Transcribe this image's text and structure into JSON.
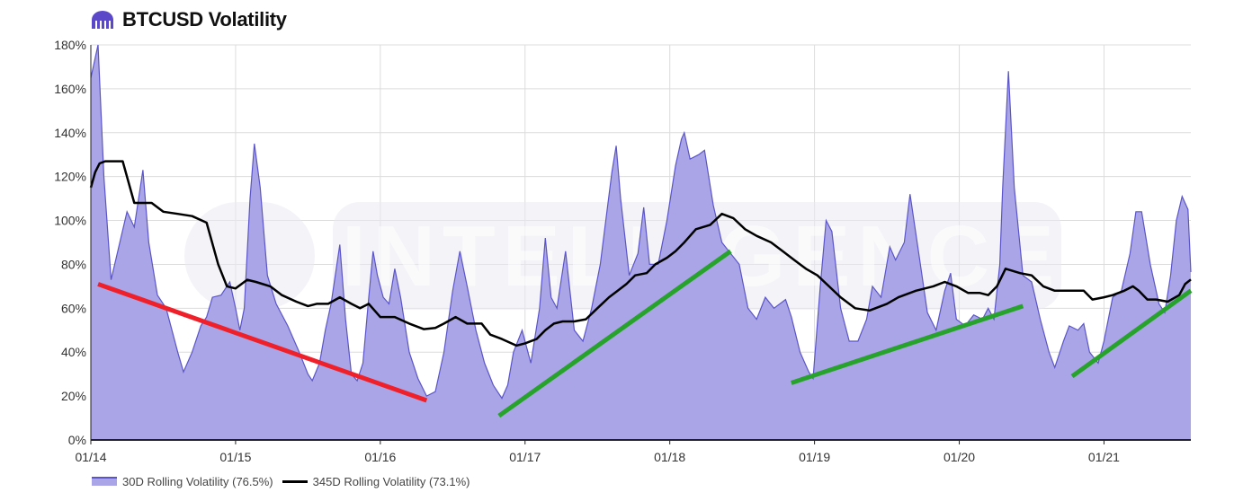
{
  "header": {
    "title": "BTCUSD Volatility",
    "logo_icon": "kraken-logo-icon"
  },
  "colors": {
    "area_fill": "#a9a5e6",
    "area_stroke": "#5b55c8",
    "line": "#000000",
    "trend_down": "#f0202a",
    "trend_up": "#27a32c",
    "grid": "#dcdcdc",
    "watermark": "#e8e8ef"
  },
  "watermark": {
    "text": "INTELLIGENCE"
  },
  "legend": {
    "items": [
      {
        "label": "30D Rolling Volatility (76.5%)"
      },
      {
        "label": "345D Rolling Volatility (73.1%)"
      }
    ]
  },
  "chart_data": {
    "type": "area",
    "xlabel": "",
    "ylabel": "",
    "x_unit": "year",
    "xlim": [
      2014.0,
      2021.6
    ],
    "ylim": [
      0,
      180
    ],
    "yticks": [
      0,
      20,
      40,
      60,
      80,
      100,
      120,
      140,
      160,
      180
    ],
    "ytick_labels": [
      "0%",
      "20%",
      "40%",
      "60%",
      "80%",
      "100%",
      "120%",
      "140%",
      "160%",
      "180%"
    ],
    "xticks": [
      2014,
      2015,
      2016,
      2017,
      2018,
      2019,
      2020,
      2021
    ],
    "xtick_labels": [
      "01/14",
      "01/15",
      "01/16",
      "01/17",
      "01/18",
      "01/19",
      "01/20",
      "01/21"
    ],
    "grid": true,
    "legend_position": "bottom-left",
    "series": [
      {
        "name": "30D Rolling Volatility (76.5%)",
        "type": "area",
        "points": [
          [
            2014.0,
            165
          ],
          [
            2014.05,
            180
          ],
          [
            2014.09,
            120
          ],
          [
            2014.14,
            73
          ],
          [
            2014.2,
            90
          ],
          [
            2014.25,
            104
          ],
          [
            2014.3,
            97
          ],
          [
            2014.36,
            123
          ],
          [
            2014.4,
            90
          ],
          [
            2014.46,
            66
          ],
          [
            2014.52,
            60
          ],
          [
            2014.6,
            40
          ],
          [
            2014.64,
            31
          ],
          [
            2014.7,
            40
          ],
          [
            2014.76,
            52
          ],
          [
            2014.8,
            56
          ],
          [
            2014.84,
            65
          ],
          [
            2014.9,
            66
          ],
          [
            2014.96,
            72
          ],
          [
            2015.0,
            60
          ],
          [
            2015.03,
            50
          ],
          [
            2015.06,
            60
          ],
          [
            2015.1,
            110
          ],
          [
            2015.13,
            135
          ],
          [
            2015.17,
            115
          ],
          [
            2015.22,
            75
          ],
          [
            2015.28,
            62
          ],
          [
            2015.36,
            52
          ],
          [
            2015.44,
            40
          ],
          [
            2015.5,
            30
          ],
          [
            2015.53,
            27
          ],
          [
            2015.58,
            35
          ],
          [
            2015.62,
            50
          ],
          [
            2015.66,
            62
          ],
          [
            2015.7,
            80
          ],
          [
            2015.72,
            89
          ],
          [
            2015.76,
            55
          ],
          [
            2015.8,
            30
          ],
          [
            2015.84,
            27
          ],
          [
            2015.88,
            35
          ],
          [
            2015.92,
            65
          ],
          [
            2015.95,
            86
          ],
          [
            2015.98,
            75
          ],
          [
            2016.02,
            65
          ],
          [
            2016.06,
            62
          ],
          [
            2016.1,
            78
          ],
          [
            2016.14,
            65
          ],
          [
            2016.2,
            40
          ],
          [
            2016.26,
            28
          ],
          [
            2016.32,
            20
          ],
          [
            2016.38,
            22
          ],
          [
            2016.44,
            40
          ],
          [
            2016.5,
            68
          ],
          [
            2016.55,
            86
          ],
          [
            2016.6,
            70
          ],
          [
            2016.66,
            50
          ],
          [
            2016.72,
            35
          ],
          [
            2016.78,
            25
          ],
          [
            2016.84,
            19
          ],
          [
            2016.88,
            25
          ],
          [
            2016.92,
            40
          ],
          [
            2016.98,
            50
          ],
          [
            2017.04,
            35
          ],
          [
            2017.1,
            60
          ],
          [
            2017.14,
            92
          ],
          [
            2017.18,
            65
          ],
          [
            2017.22,
            60
          ],
          [
            2017.28,
            86
          ],
          [
            2017.34,
            50
          ],
          [
            2017.4,
            45
          ],
          [
            2017.46,
            60
          ],
          [
            2017.52,
            80
          ],
          [
            2017.6,
            122
          ],
          [
            2017.63,
            134
          ],
          [
            2017.66,
            110
          ],
          [
            2017.72,
            75
          ],
          [
            2017.78,
            85
          ],
          [
            2017.82,
            106
          ],
          [
            2017.86,
            80
          ],
          [
            2017.92,
            80
          ],
          [
            2017.98,
            100
          ],
          [
            2018.04,
            125
          ],
          [
            2018.08,
            137
          ],
          [
            2018.1,
            140
          ],
          [
            2018.14,
            128
          ],
          [
            2018.2,
            130
          ],
          [
            2018.24,
            132
          ],
          [
            2018.3,
            107
          ],
          [
            2018.36,
            90
          ],
          [
            2018.42,
            85
          ],
          [
            2018.48,
            80
          ],
          [
            2018.54,
            60
          ],
          [
            2018.6,
            55
          ],
          [
            2018.66,
            65
          ],
          [
            2018.72,
            60
          ],
          [
            2018.8,
            64
          ],
          [
            2018.84,
            56
          ],
          [
            2018.9,
            40
          ],
          [
            2018.96,
            31
          ],
          [
            2018.99,
            28
          ],
          [
            2019.04,
            70
          ],
          [
            2019.08,
            100
          ],
          [
            2019.12,
            95
          ],
          [
            2019.18,
            60
          ],
          [
            2019.24,
            45
          ],
          [
            2019.3,
            45
          ],
          [
            2019.36,
            55
          ],
          [
            2019.4,
            70
          ],
          [
            2019.46,
            65
          ],
          [
            2019.52,
            88
          ],
          [
            2019.56,
            82
          ],
          [
            2019.62,
            90
          ],
          [
            2019.66,
            112
          ],
          [
            2019.72,
            85
          ],
          [
            2019.78,
            58
          ],
          [
            2019.84,
            50
          ],
          [
            2019.9,
            68
          ],
          [
            2019.94,
            76
          ],
          [
            2019.98,
            55
          ],
          [
            2020.04,
            52
          ],
          [
            2020.1,
            57
          ],
          [
            2020.16,
            55
          ],
          [
            2020.2,
            60
          ],
          [
            2020.24,
            55
          ],
          [
            2020.28,
            80
          ],
          [
            2020.3,
            115
          ],
          [
            2020.34,
            168
          ],
          [
            2020.38,
            115
          ],
          [
            2020.44,
            75
          ],
          [
            2020.5,
            72
          ],
          [
            2020.56,
            55
          ],
          [
            2020.62,
            40
          ],
          [
            2020.66,
            33
          ],
          [
            2020.72,
            45
          ],
          [
            2020.76,
            52
          ],
          [
            2020.82,
            50
          ],
          [
            2020.86,
            53
          ],
          [
            2020.9,
            40
          ],
          [
            2020.96,
            35
          ],
          [
            2021.0,
            45
          ],
          [
            2021.06,
            65
          ],
          [
            2021.12,
            68
          ],
          [
            2021.18,
            85
          ],
          [
            2021.22,
            104
          ],
          [
            2021.26,
            104
          ],
          [
            2021.32,
            80
          ],
          [
            2021.38,
            62
          ],
          [
            2021.42,
            58
          ],
          [
            2021.46,
            75
          ],
          [
            2021.5,
            100
          ],
          [
            2021.54,
            111
          ],
          [
            2021.58,
            105
          ],
          [
            2021.6,
            76.5
          ]
        ]
      },
      {
        "name": "345D Rolling Volatility (73.1%)",
        "type": "line",
        "points": [
          [
            2014.0,
            115
          ],
          [
            2014.03,
            122
          ],
          [
            2014.06,
            126
          ],
          [
            2014.1,
            127
          ],
          [
            2014.22,
            127
          ],
          [
            2014.3,
            108
          ],
          [
            2014.42,
            108
          ],
          [
            2014.5,
            104
          ],
          [
            2014.6,
            103
          ],
          [
            2014.7,
            102
          ],
          [
            2014.8,
            99
          ],
          [
            2014.88,
            80
          ],
          [
            2014.94,
            70
          ],
          [
            2015.0,
            69
          ],
          [
            2015.08,
            73
          ],
          [
            2015.14,
            72
          ],
          [
            2015.24,
            70
          ],
          [
            2015.32,
            66
          ],
          [
            2015.42,
            63
          ],
          [
            2015.5,
            61
          ],
          [
            2015.56,
            62
          ],
          [
            2015.64,
            62
          ],
          [
            2015.72,
            65
          ],
          [
            2015.8,
            62
          ],
          [
            2015.86,
            60
          ],
          [
            2015.92,
            62
          ],
          [
            2016.0,
            56
          ],
          [
            2016.1,
            56
          ],
          [
            2016.2,
            53
          ],
          [
            2016.3,
            50.5
          ],
          [
            2016.38,
            51
          ],
          [
            2016.44,
            53
          ],
          [
            2016.52,
            56
          ],
          [
            2016.6,
            53
          ],
          [
            2016.7,
            53
          ],
          [
            2016.76,
            48
          ],
          [
            2016.84,
            46
          ],
          [
            2016.94,
            43
          ],
          [
            2017.0,
            44
          ],
          [
            2017.08,
            46
          ],
          [
            2017.14,
            50
          ],
          [
            2017.2,
            53
          ],
          [
            2017.26,
            54
          ],
          [
            2017.34,
            54
          ],
          [
            2017.42,
            55
          ],
          [
            2017.5,
            60
          ],
          [
            2017.58,
            65
          ],
          [
            2017.64,
            68
          ],
          [
            2017.7,
            71
          ],
          [
            2017.76,
            75
          ],
          [
            2017.84,
            76
          ],
          [
            2017.9,
            80
          ],
          [
            2017.98,
            83
          ],
          [
            2018.04,
            86
          ],
          [
            2018.1,
            90
          ],
          [
            2018.18,
            96
          ],
          [
            2018.28,
            98
          ],
          [
            2018.36,
            103
          ],
          [
            2018.44,
            101
          ],
          [
            2018.52,
            96
          ],
          [
            2018.6,
            93
          ],
          [
            2018.7,
            90
          ],
          [
            2018.78,
            86
          ],
          [
            2018.86,
            82
          ],
          [
            2018.94,
            78
          ],
          [
            2019.02,
            75
          ],
          [
            2019.1,
            70
          ],
          [
            2019.18,
            65
          ],
          [
            2019.28,
            60
          ],
          [
            2019.38,
            59
          ],
          [
            2019.5,
            62
          ],
          [
            2019.58,
            65
          ],
          [
            2019.7,
            68
          ],
          [
            2019.82,
            70
          ],
          [
            2019.9,
            72
          ],
          [
            2019.98,
            70
          ],
          [
            2020.06,
            67
          ],
          [
            2020.14,
            67
          ],
          [
            2020.2,
            66
          ],
          [
            2020.26,
            70
          ],
          [
            2020.32,
            78
          ],
          [
            2020.42,
            76
          ],
          [
            2020.5,
            75
          ],
          [
            2020.58,
            70
          ],
          [
            2020.66,
            68
          ],
          [
            2020.76,
            68
          ],
          [
            2020.86,
            68
          ],
          [
            2020.92,
            64
          ],
          [
            2021.0,
            65
          ],
          [
            2021.06,
            66
          ],
          [
            2021.14,
            68
          ],
          [
            2021.2,
            70
          ],
          [
            2021.24,
            68
          ],
          [
            2021.3,
            64
          ],
          [
            2021.36,
            64
          ],
          [
            2021.44,
            63
          ],
          [
            2021.52,
            66
          ],
          [
            2021.56,
            71
          ],
          [
            2021.6,
            73.1
          ]
        ]
      }
    ],
    "annotations": [
      {
        "type": "trendline",
        "color": "red",
        "from": [
          2014.05,
          71
        ],
        "to": [
          2016.32,
          18
        ]
      },
      {
        "type": "trendline",
        "color": "green",
        "from": [
          2016.82,
          11
        ],
        "to": [
          2018.42,
          86
        ]
      },
      {
        "type": "trendline",
        "color": "green",
        "from": [
          2018.84,
          26
        ],
        "to": [
          2020.44,
          61
        ]
      },
      {
        "type": "trendline",
        "color": "green",
        "from": [
          2020.78,
          29
        ],
        "to": [
          2021.6,
          68
        ]
      }
    ]
  }
}
